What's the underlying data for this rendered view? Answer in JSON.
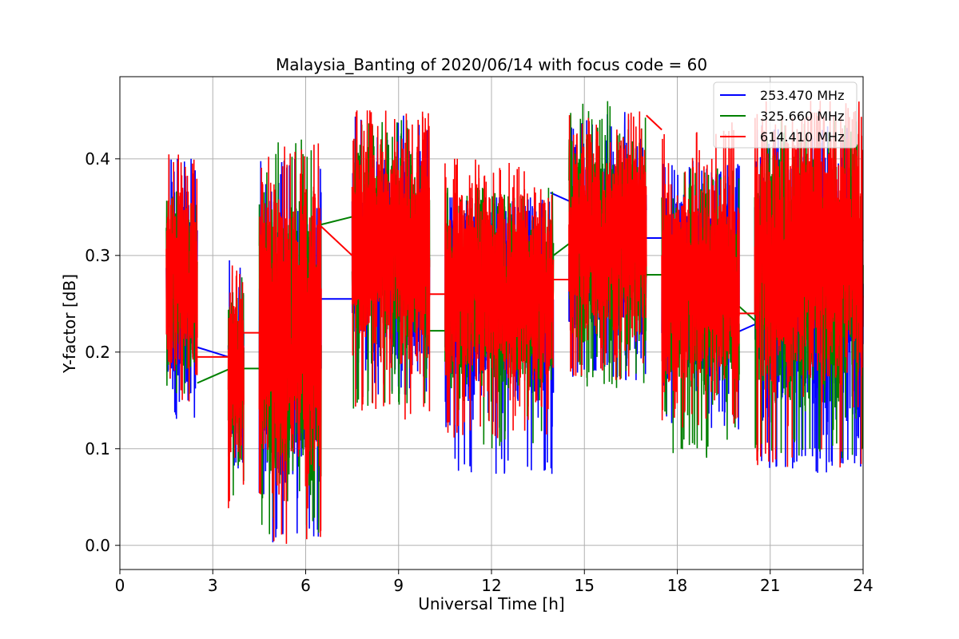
{
  "chart_data": {
    "type": "line",
    "title": "Malaysia_Banting of 2020/06/14 with focus code = 60",
    "xlabel": "Universal Time [h]",
    "ylabel": "Y-factor [dB]",
    "xlim": [
      0,
      24
    ],
    "ylim": [
      -0.025,
      0.485
    ],
    "x_ticks": [
      0,
      3,
      6,
      9,
      12,
      15,
      18,
      21,
      24
    ],
    "y_ticks": [
      0.0,
      0.1,
      0.2,
      0.3,
      0.4
    ],
    "y_tick_labels": [
      "0.0",
      "0.1",
      "0.2",
      "0.3",
      "0.4"
    ],
    "grid": true,
    "legend_position": "top-right",
    "series": [
      {
        "name": "253.470 MHz",
        "color": "#0000ff",
        "segments": [
          {
            "x": [
              1.5,
              2.5
            ],
            "mean": 0.27,
            "min": 0.115,
            "max": 0.4
          },
          {
            "x": [
              3.5,
              4.0
            ],
            "mean": 0.19,
            "min": 0.07,
            "max": 0.305
          },
          {
            "x": [
              4.5,
              6.5
            ],
            "mean": 0.21,
            "min": 0.0,
            "max": 0.4
          },
          {
            "x": [
              7.5,
              10.0
            ],
            "mean": 0.3,
            "min": 0.15,
            "max": 0.445
          },
          {
            "x": [
              10.5,
              14.0
            ],
            "mean": 0.255,
            "min": 0.072,
            "max": 0.36
          },
          {
            "x": [
              14.5,
              17.0
            ],
            "mean": 0.31,
            "min": 0.17,
            "max": 0.45
          },
          {
            "x": [
              17.5,
              20.0
            ],
            "mean": 0.27,
            "min": 0.12,
            "max": 0.4
          },
          {
            "x": [
              20.5,
              24.0
            ],
            "mean": 0.27,
            "min": 0.073,
            "max": 0.435
          }
        ],
        "connectors": [
          [
            2.5,
            0.205,
            3.5,
            0.195
          ],
          [
            6.5,
            0.255,
            7.5,
            0.255
          ],
          [
            13.9,
            0.365,
            14.6,
            0.355
          ],
          [
            16.9,
            0.318,
            17.6,
            0.318
          ],
          [
            19.9,
            0.22,
            20.6,
            0.23
          ],
          [
            23.5,
            0.32,
            24.0,
            0.305
          ]
        ]
      },
      {
        "name": "325.660 MHz",
        "color": "#008000",
        "segments": [
          {
            "x": [
              1.5,
              2.5
            ],
            "mean": 0.27,
            "min": 0.14,
            "max": 0.37
          },
          {
            "x": [
              3.5,
              4.0
            ],
            "mean": 0.18,
            "min": 0.045,
            "max": 0.29
          },
          {
            "x": [
              4.5,
              6.5
            ],
            "mean": 0.21,
            "min": 0.01,
            "max": 0.42
          },
          {
            "x": [
              7.5,
              10.0
            ],
            "mean": 0.31,
            "min": 0.14,
            "max": 0.44
          },
          {
            "x": [
              10.5,
              14.0
            ],
            "mean": 0.26,
            "min": 0.1,
            "max": 0.37
          },
          {
            "x": [
              14.5,
              17.0
            ],
            "mean": 0.31,
            "min": 0.16,
            "max": 0.46
          },
          {
            "x": [
              17.5,
              20.0
            ],
            "mean": 0.26,
            "min": 0.09,
            "max": 0.39
          },
          {
            "x": [
              20.5,
              24.0
            ],
            "mean": 0.28,
            "min": 0.09,
            "max": 0.44
          }
        ],
        "connectors": [
          [
            2.5,
            0.168,
            3.5,
            0.182
          ],
          [
            4.0,
            0.183,
            4.5,
            0.183
          ],
          [
            6.5,
            0.332,
            7.5,
            0.34
          ],
          [
            10.0,
            0.222,
            10.5,
            0.222
          ],
          [
            14.0,
            0.3,
            14.5,
            0.312
          ],
          [
            17.0,
            0.28,
            17.5,
            0.28
          ],
          [
            19.9,
            0.25,
            20.6,
            0.23
          ],
          [
            23.5,
            0.34,
            24.0,
            0.315
          ]
        ]
      },
      {
        "name": "614.410 MHz",
        "color": "#ff0000",
        "segments": [
          {
            "x": [
              1.5,
              2.5
            ],
            "mean": 0.28,
            "min": 0.14,
            "max": 0.41
          },
          {
            "x": [
              3.5,
              4.0
            ],
            "mean": 0.18,
            "min": 0.035,
            "max": 0.29
          },
          {
            "x": [
              4.5,
              6.5
            ],
            "mean": 0.22,
            "min": 0.0,
            "max": 0.42
          },
          {
            "x": [
              7.5,
              10.0
            ],
            "mean": 0.31,
            "min": 0.13,
            "max": 0.45
          },
          {
            "x": [
              10.5,
              14.0
            ],
            "mean": 0.27,
            "min": 0.11,
            "max": 0.4
          },
          {
            "x": [
              14.5,
              17.0
            ],
            "mean": 0.32,
            "min": 0.17,
            "max": 0.45
          },
          {
            "x": [
              17.5,
              20.0
            ],
            "mean": 0.27,
            "min": 0.12,
            "max": 0.44
          },
          {
            "x": [
              20.5,
              24.0
            ],
            "mean": 0.3,
            "min": 0.08,
            "max": 0.46
          }
        ],
        "connectors": [
          [
            2.5,
            0.195,
            3.5,
            0.195
          ],
          [
            4.0,
            0.22,
            4.5,
            0.22
          ],
          [
            6.5,
            0.33,
            7.5,
            0.3
          ],
          [
            10.0,
            0.26,
            10.5,
            0.26
          ],
          [
            14.0,
            0.275,
            14.5,
            0.275
          ],
          [
            17.0,
            0.445,
            17.5,
            0.43
          ],
          [
            19.9,
            0.24,
            20.6,
            0.24
          ],
          [
            23.5,
            0.275,
            24.0,
            0.275
          ]
        ]
      }
    ]
  }
}
